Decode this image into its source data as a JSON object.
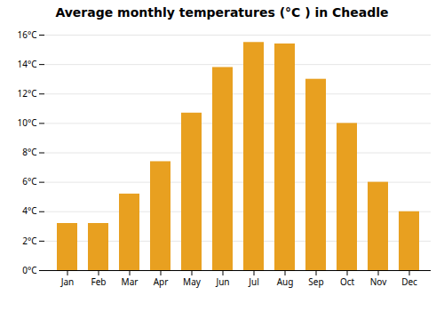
{
  "chart_data": {
    "type": "bar",
    "title": "Average monthly temperatures (°C ) in Cheadle",
    "categories": [
      "Jan",
      "Feb",
      "Mar",
      "Apr",
      "May",
      "Jun",
      "Jul",
      "Aug",
      "Sep",
      "Oct",
      "Nov",
      "Dec"
    ],
    "values": [
      3.2,
      3.2,
      5.2,
      7.4,
      10.7,
      13.8,
      15.5,
      15.4,
      13.0,
      10.0,
      6.0,
      4.0
    ],
    "color": "#E8A020",
    "ylim": [
      0,
      16
    ],
    "yticks": [
      {
        "value": 0,
        "label": "0°C"
      },
      {
        "value": 2,
        "label": "2°C"
      },
      {
        "value": 4,
        "label": "4°C"
      },
      {
        "value": 6,
        "label": "6°C"
      },
      {
        "value": 8,
        "label": "8°C"
      },
      {
        "value": 10,
        "label": "10°C"
      },
      {
        "value": 12,
        "label": "12°C"
      },
      {
        "value": 14,
        "label": "14°C"
      },
      {
        "value": 16,
        "label": "16°C"
      }
    ],
    "grid": true
  }
}
